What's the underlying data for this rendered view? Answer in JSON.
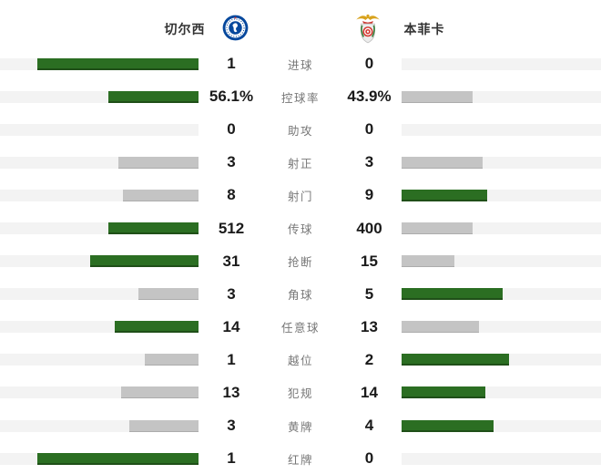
{
  "header": {
    "home_team": "切尔西",
    "away_team": "本菲卡",
    "home_logo": "chelsea-crest",
    "away_logo": "benfica-crest"
  },
  "colors": {
    "bar_green": "#2b6e22",
    "bar_gray": "#c4c4c4",
    "bar_track": "#f3f3f3",
    "value_text": "#1a1a1a",
    "label_text": "#777777",
    "team_text": "#333333",
    "chelsea_blue": "#06489d",
    "benfica_red": "#d5352f",
    "eagle_gold": "#d8a21c"
  },
  "chart_data": {
    "type": "bar",
    "orientation": "paired-horizontal",
    "legend_position": "top",
    "grid": false,
    "bar_rule": "bar length proportional to value/(home+away); higher value is green, lower or tied value is gray; zero renders empty track",
    "categories": [
      "进球",
      "控球率",
      "助攻",
      "射正",
      "射门",
      "传球",
      "抢断",
      "角球",
      "任意球",
      "越位",
      "犯规",
      "黄牌",
      "红牌"
    ],
    "series": [
      {
        "name": "切尔西",
        "values": [
          1,
          56.1,
          0,
          3,
          8,
          512,
          31,
          3,
          14,
          1,
          13,
          3,
          1
        ],
        "labels": [
          "1",
          "56.1%",
          "0",
          "3",
          "8",
          "512",
          "31",
          "3",
          "14",
          "1",
          "13",
          "3",
          "1"
        ]
      },
      {
        "name": "本菲卡",
        "values": [
          0,
          43.9,
          0,
          3,
          9,
          400,
          15,
          5,
          13,
          2,
          14,
          4,
          0
        ],
        "labels": [
          "0",
          "43.9%",
          "0",
          "3",
          "9",
          "400",
          "15",
          "5",
          "13",
          "2",
          "14",
          "4",
          "0"
        ]
      }
    ]
  }
}
